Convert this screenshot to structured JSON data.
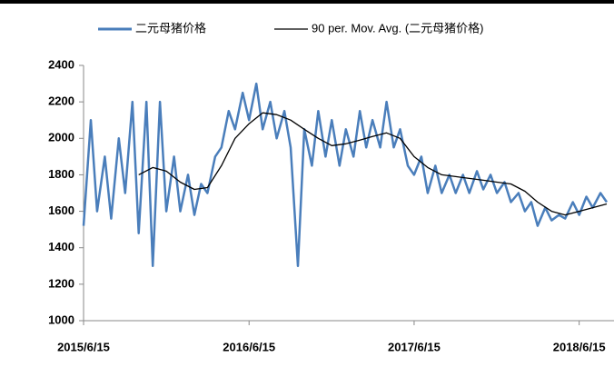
{
  "chart_data": {
    "type": "line",
    "xlim": [
      "2015/6/15",
      "2018/8/31"
    ],
    "xticks": [
      "2015/6/15",
      "2016/6/15",
      "2017/6/15",
      "2018/6/15"
    ],
    "ylim": [
      1000,
      2400
    ],
    "yticks": [
      1000,
      1200,
      1400,
      1600,
      1800,
      2000,
      2200,
      2400
    ],
    "legend": "top",
    "series": [
      {
        "name": "二元母猪价格",
        "color": "#4a7ebb",
        "x": [
          "2015/6/15",
          "2015/7/1",
          "2015/7/15",
          "2015/8/1",
          "2015/8/15",
          "2015/9/1",
          "2015/9/15",
          "2015/10/1",
          "2015/10/15",
          "2015/11/1",
          "2015/11/15",
          "2015/12/1",
          "2015/12/15",
          "2016/1/1",
          "2016/1/15",
          "2016/2/1",
          "2016/2/15",
          "2016/3/1",
          "2016/3/15",
          "2016/4/1",
          "2016/4/15",
          "2016/5/1",
          "2016/5/15",
          "2016/6/1",
          "2016/6/15",
          "2016/7/1",
          "2016/7/15",
          "2016/8/1",
          "2016/8/15",
          "2016/9/1",
          "2016/9/15",
          "2016/10/1",
          "2016/10/15",
          "2016/11/1",
          "2016/11/15",
          "2016/12/1",
          "2016/12/15",
          "2017/1/1",
          "2017/1/15",
          "2017/2/1",
          "2017/2/15",
          "2017/3/1",
          "2017/3/15",
          "2017/4/1",
          "2017/4/15",
          "2017/5/1",
          "2017/5/15",
          "2017/6/1",
          "2017/6/15",
          "2017/7/1",
          "2017/7/15",
          "2017/8/1",
          "2017/8/15",
          "2017/9/1",
          "2017/9/15",
          "2017/10/1",
          "2017/10/15",
          "2017/11/1",
          "2017/11/15",
          "2017/12/1",
          "2017/12/15",
          "2018/1/1",
          "2018/1/15",
          "2018/2/1",
          "2018/2/15",
          "2018/3/1",
          "2018/3/15",
          "2018/4/1",
          "2018/4/15",
          "2018/5/1",
          "2018/5/15",
          "2018/6/1",
          "2018/6/15",
          "2018/7/1",
          "2018/7/15",
          "2018/8/1",
          "2018/8/15"
        ],
        "values": [
          1520,
          2100,
          1600,
          1900,
          1560,
          2000,
          1700,
          2200,
          1480,
          2200,
          1300,
          2200,
          1600,
          1900,
          1600,
          1800,
          1580,
          1750,
          1700,
          1900,
          1950,
          2150,
          2050,
          2250,
          2100,
          2300,
          2050,
          2200,
          2000,
          2150,
          1950,
          1300,
          2050,
          1850,
          2150,
          1900,
          2100,
          1850,
          2050,
          1900,
          2150,
          1950,
          2100,
          1950,
          2200,
          1950,
          2050,
          1850,
          1800,
          1900,
          1700,
          1850,
          1700,
          1800,
          1700,
          1800,
          1700,
          1820,
          1720,
          1800,
          1700,
          1760,
          1650,
          1700,
          1600,
          1650,
          1520,
          1620,
          1550,
          1580,
          1560,
          1650,
          1580,
          1680,
          1620,
          1700,
          1650
        ]
      },
      {
        "name": "90 per. Mov. Avg. (二元母猪价格)",
        "color": "#000000",
        "x": [
          "2015/10/15",
          "2015/11/15",
          "2015/12/15",
          "2016/1/15",
          "2016/2/15",
          "2016/3/15",
          "2016/4/15",
          "2016/5/15",
          "2016/6/15",
          "2016/7/15",
          "2016/8/15",
          "2016/9/15",
          "2016/10/15",
          "2016/11/15",
          "2016/12/15",
          "2017/1/15",
          "2017/2/15",
          "2017/3/15",
          "2017/4/15",
          "2017/5/15",
          "2017/6/15",
          "2017/7/15",
          "2017/8/15",
          "2017/9/15",
          "2017/10/15",
          "2017/11/15",
          "2017/12/15",
          "2018/1/15",
          "2018/2/15",
          "2018/3/15",
          "2018/4/15",
          "2018/5/15",
          "2018/6/15",
          "2018/7/15",
          "2018/8/15"
        ],
        "values": [
          1800,
          1840,
          1820,
          1760,
          1720,
          1730,
          1850,
          2000,
          2080,
          2140,
          2130,
          2100,
          2050,
          2000,
          1960,
          1970,
          1990,
          2010,
          2030,
          2000,
          1900,
          1840,
          1800,
          1790,
          1780,
          1770,
          1760,
          1750,
          1710,
          1650,
          1600,
          1580,
          1600,
          1620,
          1640
        ]
      }
    ]
  }
}
